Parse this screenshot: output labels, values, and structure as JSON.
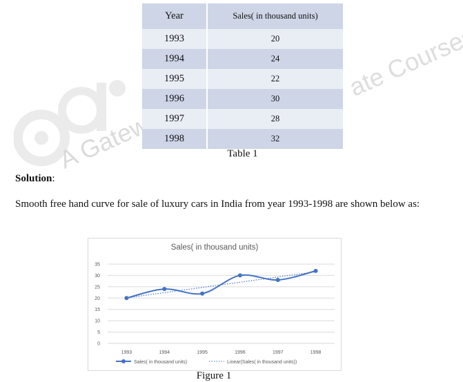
{
  "table": {
    "header": {
      "year": "Year",
      "sales": "Sales( in thousand units)"
    },
    "rows": [
      {
        "year": "1993",
        "sales": "20"
      },
      {
        "year": "1994",
        "sales": "24"
      },
      {
        "year": "1995",
        "sales": "22"
      },
      {
        "year": "1996",
        "sales": "30"
      },
      {
        "year": "1997",
        "sales": "28"
      },
      {
        "year": "1998",
        "sales": "32"
      }
    ],
    "caption": "Table 1"
  },
  "solution_label": "Solution",
  "solution_colon": ":",
  "intro_text": "Smooth free hand curve for sale of luxury cars in India from year 1993-1998 are shown below as:",
  "figure_caption": "Figure 1",
  "watermark": {
    "text": "A Gateway to All",
    "text2": "ate Courses"
  },
  "colors": {
    "series": "#4472c4",
    "table_dark": "#cdd5e6",
    "table_light": "#e9edf4"
  },
  "chart_data": {
    "type": "line",
    "title": "Sales( in thousand units)",
    "categories": [
      "1993",
      "1994",
      "1995",
      "1996",
      "1997",
      "1998"
    ],
    "series": [
      {
        "name": "Sales( in thousand units)",
        "values": [
          20,
          24,
          22,
          30,
          28,
          32
        ],
        "style": "smooth",
        "markers": true
      },
      {
        "name": "Linear(Sales( in thousand units))",
        "values": [
          20.1,
          22.4,
          24.7,
          27.0,
          29.3,
          31.6
        ],
        "style": "dotted"
      }
    ],
    "ylim": [
      0,
      35
    ],
    "yticks": [
      0,
      5,
      10,
      15,
      20,
      25,
      30,
      35
    ],
    "grid": true,
    "legend": "bottom"
  }
}
